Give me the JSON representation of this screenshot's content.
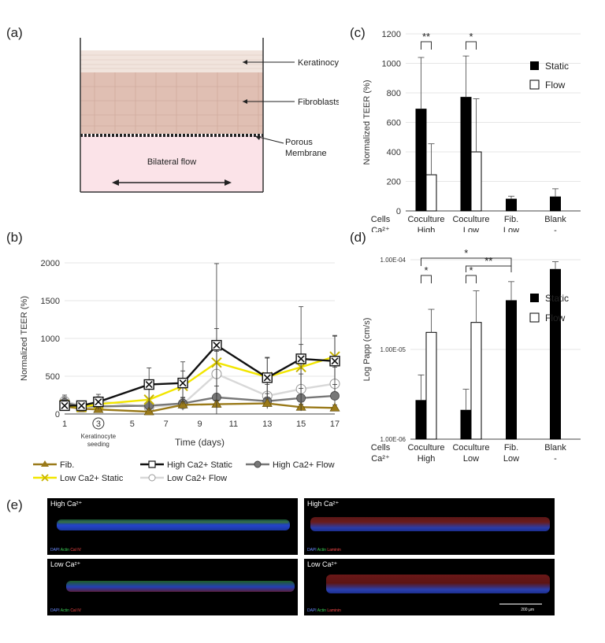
{
  "panels": {
    "a": "(a)",
    "b": "(b)",
    "c": "(c)",
    "d": "(d)",
    "e": "(e)"
  },
  "diagram": {
    "keratinocytes": "Keratinocytes",
    "fibroblasts": "Fibroblasts",
    "membrane_line1": "Porous",
    "membrane_line2": "Membrane",
    "flow": "Bilateral flow"
  },
  "colors": {
    "fib": "#9a7a1a",
    "high_static": "#111111",
    "high_flow": "#777777",
    "low_static": "#f2e600",
    "low_flow": "#d8d8d8",
    "static_bar": "#000000",
    "flow_bar": "#ffffff",
    "media": "#fbe3e8"
  },
  "chart_data": [
    {
      "panel": "b",
      "type": "line",
      "xlabel": "Time (days)",
      "ylabel": "Normalized TEER (%)",
      "xticks": [
        1,
        3,
        5,
        7,
        9,
        11,
        13,
        15,
        17
      ],
      "circled_tick": "3",
      "annotation": [
        "Keratinocyte",
        "seeding"
      ],
      "ylim": [
        0,
        2000
      ],
      "yticks": [
        0,
        500,
        1000,
        1500,
        2000
      ],
      "series": [
        {
          "name": "Fib.",
          "marker": "triangle",
          "x": [
            1,
            2,
            3,
            6,
            8,
            10,
            13,
            15,
            17
          ],
          "values": [
            100,
            70,
            60,
            30,
            120,
            130,
            140,
            90,
            80
          ],
          "err": [
            30,
            20,
            20,
            30,
            40,
            50,
            60,
            40,
            40
          ]
        },
        {
          "name": "High Ca2+ Static",
          "marker": "xsquare",
          "x": [
            1,
            2,
            3,
            6,
            8,
            10,
            13,
            15,
            17
          ],
          "values": [
            110,
            110,
            160,
            390,
            410,
            910,
            480,
            730,
            700
          ],
          "err": [
            60,
            40,
            60,
            220,
            280,
            1080,
            270,
            690,
            330
          ]
        },
        {
          "name": "High Ca2+ Flow",
          "marker": "circle",
          "x": [
            1,
            2,
            3,
            6,
            8,
            10,
            13,
            15,
            17
          ],
          "values": [
            150,
            100,
            100,
            110,
            140,
            220,
            170,
            210,
            240
          ],
          "err": [
            70,
            50,
            60,
            60,
            80,
            150,
            100,
            130,
            150
          ]
        },
        {
          "name": "Low Ca2+ Static",
          "marker": "x",
          "x": [
            1,
            2,
            3,
            6,
            8,
            10,
            13,
            15,
            17
          ],
          "values": [
            120,
            90,
            130,
            190,
            370,
            680,
            490,
            620,
            760
          ],
          "err": [
            60,
            40,
            70,
            150,
            200,
            450,
            250,
            300,
            280
          ]
        },
        {
          "name": "Low Ca2+ Flow",
          "marker": "ocircle",
          "x": [
            1,
            2,
            3,
            6,
            8,
            10,
            13,
            15,
            17
          ],
          "values": [
            170,
            110,
            170,
            90,
            130,
            530,
            240,
            330,
            400
          ],
          "err": [
            80,
            50,
            90,
            60,
            80,
            300,
            150,
            200,
            220
          ]
        }
      ]
    },
    {
      "panel": "c",
      "type": "bar",
      "ylabel": "Normalized TEER (%)",
      "ylim": [
        0,
        1200
      ],
      "yticks": [
        0,
        200,
        400,
        600,
        800,
        1000,
        1200
      ],
      "row_labels": [
        "Cells",
        "Ca²⁺"
      ],
      "groups": [
        {
          "cells": "Coculture",
          "ca": "High",
          "static": 690,
          "static_err": 350,
          "flow": 245,
          "flow_err": 210
        },
        {
          "cells": "Coculture",
          "ca": "Low",
          "static": 770,
          "static_err": 280,
          "flow": 400,
          "flow_err": 360
        },
        {
          "cells": "Fib.",
          "ca": "Low",
          "static": 80,
          "static_err": 20,
          "flow": null,
          "flow_err": null
        },
        {
          "cells": "Blank",
          "ca": "-",
          "static": 95,
          "static_err": 55,
          "flow": null,
          "flow_err": null
        }
      ],
      "legend": [
        "Static",
        "Flow"
      ],
      "significance": [
        {
          "group": 0,
          "label": "**"
        },
        {
          "group": 1,
          "label": "*"
        }
      ]
    },
    {
      "panel": "d",
      "type": "bar",
      "ylabel": "Log Papp (cm/s)",
      "log_scale": true,
      "ylim": [
        1e-06,
        0.0001
      ],
      "ytick_labels": [
        "1.00E-04",
        "1.00E-05",
        "1.00E-06"
      ],
      "row_labels": [
        "Cells",
        "Ca²⁺"
      ],
      "groups": [
        {
          "cells": "Coculture",
          "ca": "High",
          "static": 2.7e-06,
          "static_err_top": 5.2e-06,
          "flow": 1.55e-05,
          "flow_err_top": 2.8e-05
        },
        {
          "cells": "Coculture",
          "ca": "Low",
          "static": 2.1e-06,
          "static_err_top": 3.6e-06,
          "flow": 2e-05,
          "flow_err_top": 4.5e-05
        },
        {
          "cells": "Fib.",
          "ca": "Low",
          "static": 3.5e-05,
          "static_err_top": 5.7e-05,
          "flow": null,
          "flow_err_top": null
        },
        {
          "cells": "Blank",
          "ca": "-",
          "static": 7.8e-05,
          "static_err_top": 9.5e-05,
          "flow": null,
          "flow_err_top": null
        }
      ],
      "legend": [
        "Static",
        "Flow"
      ],
      "significance": [
        {
          "label": "*"
        },
        {
          "label": "*"
        },
        {
          "label": "*"
        },
        {
          "label": "**"
        }
      ]
    }
  ],
  "micrographs": [
    {
      "title": "High Ca²⁺",
      "stains": [
        "DAPI",
        "Actin",
        "Cal IV"
      ]
    },
    {
      "title": "High Ca²⁺",
      "stains": [
        "DAPI",
        "Actin",
        "Laminin"
      ]
    },
    {
      "title": "Low Ca²⁺",
      "stains": [
        "DAPI",
        "Actin",
        "Cal IV"
      ]
    },
    {
      "title": "Low Ca²⁺",
      "stains": [
        "DAPI",
        "Actin",
        "Laminin"
      ]
    }
  ],
  "scalebar": "200 µm"
}
